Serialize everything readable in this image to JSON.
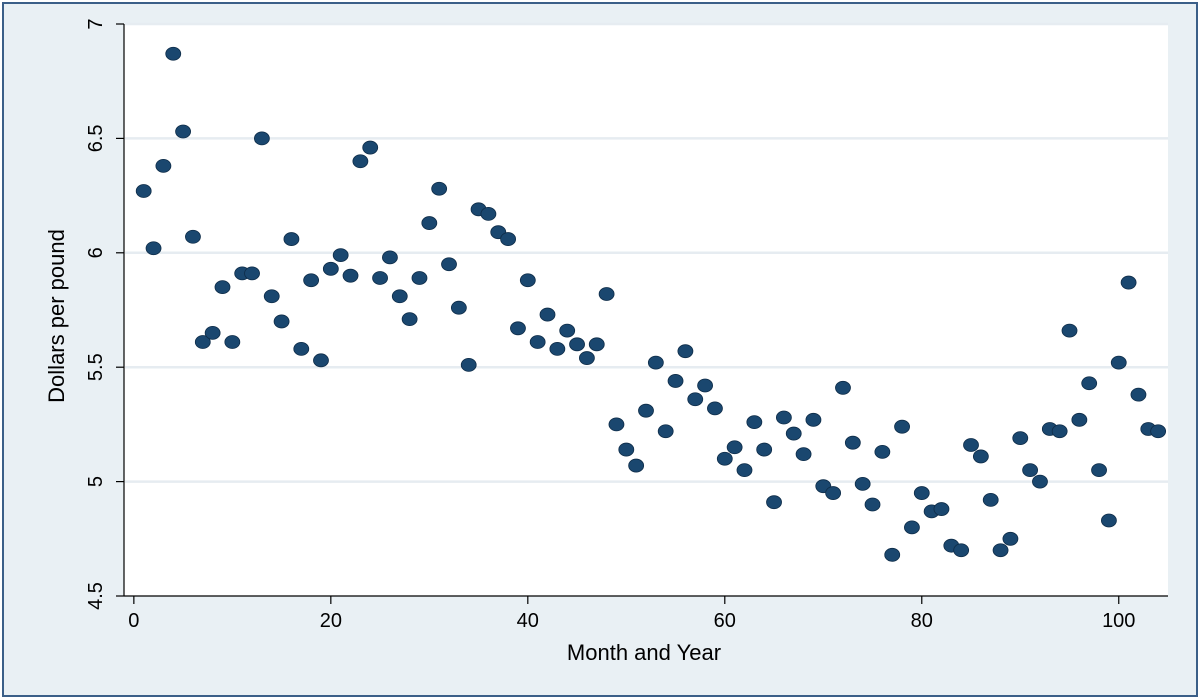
{
  "chart_data": {
    "type": "scatter",
    "title": "",
    "xlabel": "Month and Year",
    "ylabel": "Dollars per pound",
    "xlim": [
      -1,
      105
    ],
    "ylim": [
      4.5,
      7
    ],
    "xticks": [
      0,
      20,
      40,
      60,
      80,
      100
    ],
    "yticks": [
      4.5,
      5,
      5.5,
      6,
      6.5,
      7
    ],
    "xtick_labels": [
      "0",
      "20",
      "40",
      "60",
      "80",
      "100"
    ],
    "ytick_labels": [
      "4.5",
      "5",
      "5.5",
      "6",
      "6.5",
      "7"
    ],
    "grid": "horizontal",
    "legend": "none",
    "colors": {
      "background": "#e9f0f4",
      "plot_area": "#ffffff",
      "marker_fill": "#1a476f",
      "marker_edge": "#0e2c48",
      "grid": "#e6ecf1",
      "frame_border": "#3b5f88"
    },
    "series": [
      {
        "x": [
          1,
          2,
          3,
          4,
          5,
          6,
          7,
          8,
          9,
          10,
          11,
          12,
          13,
          14,
          15,
          16,
          17,
          18,
          19,
          20,
          21,
          22,
          23,
          24,
          25,
          26,
          27,
          28,
          29,
          30,
          31,
          32,
          33,
          34,
          35,
          36,
          37,
          38,
          39,
          40,
          41,
          42,
          43,
          44,
          45,
          46,
          47,
          48,
          49,
          50,
          51,
          52,
          53,
          54,
          55,
          56,
          57,
          58,
          59,
          60,
          61,
          62,
          63,
          64,
          65,
          66,
          67,
          68,
          69,
          70,
          71,
          72,
          73,
          74,
          75,
          76,
          77,
          78,
          79,
          80,
          81,
          82,
          83,
          84,
          85,
          86,
          87,
          88,
          89,
          90,
          91,
          92,
          93,
          94,
          95,
          96,
          97,
          98,
          99,
          100,
          101,
          102,
          103,
          104
        ],
        "y": [
          6.27,
          6.02,
          6.38,
          6.87,
          6.53,
          6.07,
          5.61,
          5.65,
          5.85,
          5.61,
          5.91,
          5.91,
          6.5,
          5.81,
          5.7,
          6.06,
          5.58,
          5.88,
          5.53,
          5.93,
          5.99,
          5.9,
          6.4,
          6.46,
          5.89,
          5.98,
          5.81,
          5.71,
          5.89,
          6.13,
          6.28,
          5.95,
          5.76,
          5.51,
          6.19,
          6.17,
          6.09,
          6.06,
          5.67,
          5.88,
          5.61,
          5.73,
          5.58,
          5.66,
          5.6,
          5.54,
          5.6,
          5.82,
          5.25,
          5.14,
          5.07,
          5.31,
          5.52,
          5.22,
          5.44,
          5.57,
          5.36,
          5.42,
          5.32,
          5.1,
          5.15,
          5.05,
          5.26,
          5.14,
          4.91,
          5.28,
          5.21,
          5.12,
          5.27,
          4.98,
          4.95,
          5.41,
          5.17,
          4.99,
          4.9,
          5.13,
          4.68,
          5.24,
          4.8,
          4.95,
          4.87,
          4.88,
          4.72,
          4.7,
          5.16,
          5.11,
          4.92,
          4.7,
          4.75,
          5.19,
          5.05,
          5.0,
          5.23,
          5.22,
          5.66,
          5.27,
          5.43,
          5.05,
          4.83,
          5.52,
          5.87,
          5.38,
          5.23,
          5.22
        ]
      }
    ]
  }
}
